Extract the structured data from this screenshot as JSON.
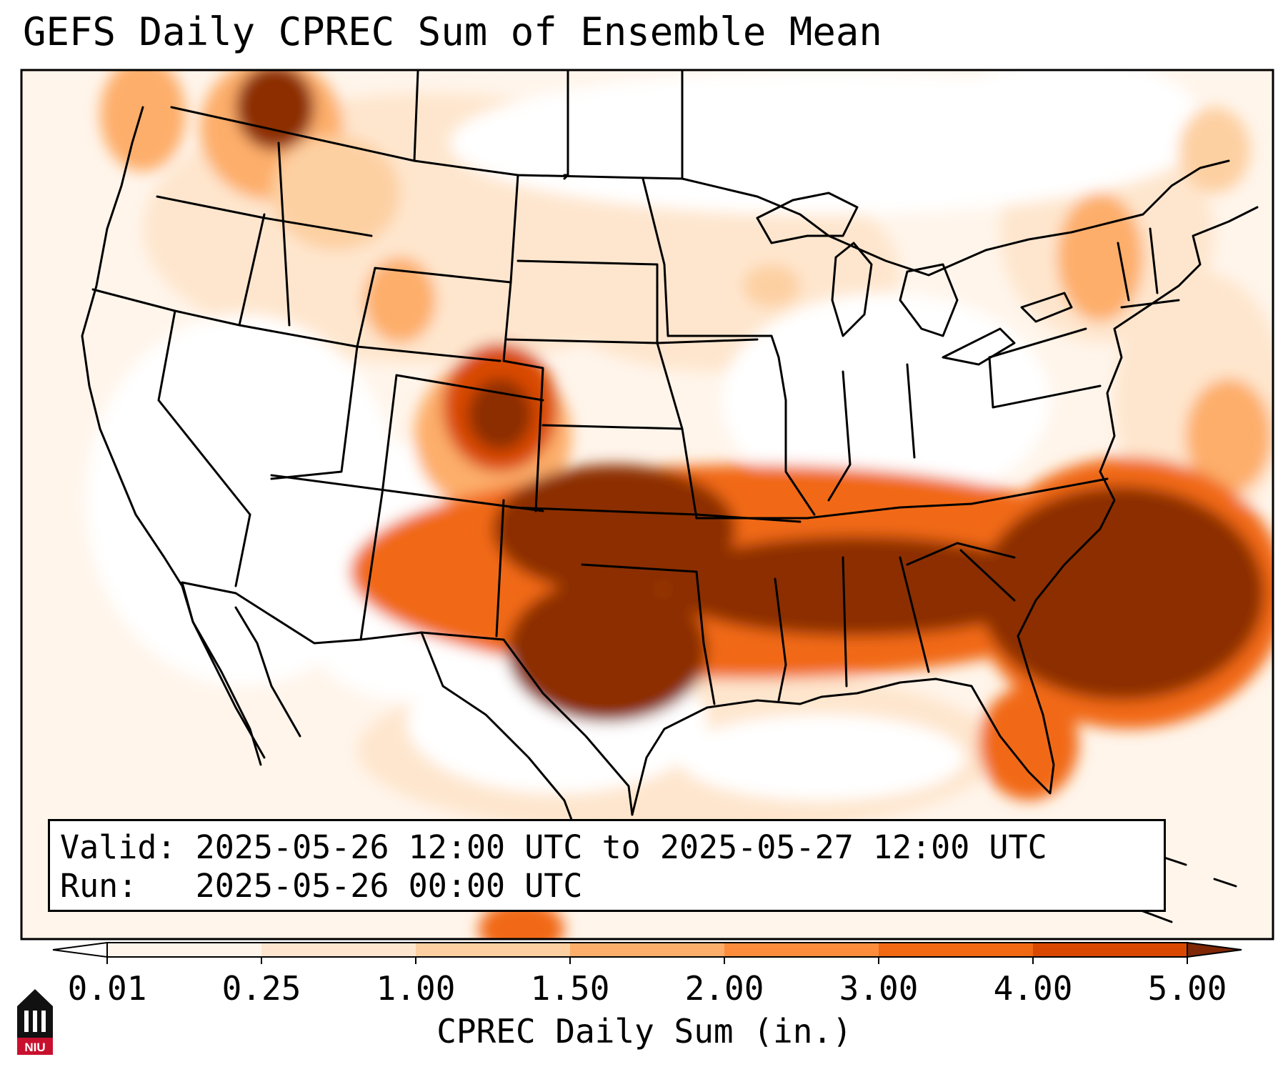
{
  "title": "GEFS Daily CPREC Sum of Ensemble Mean",
  "info": {
    "valid_line": "Valid: 2025-05-26 12:00 UTC to 2025-05-27 12:00 UTC",
    "run_line": "Run:   2025-05-26 00:00 UTC"
  },
  "colorbar": {
    "label": "CPREC Daily Sum (in.)",
    "ticks": [
      "0.01",
      "0.25",
      "1.00",
      "1.50",
      "2.00",
      "3.00",
      "4.00",
      "5.00"
    ],
    "colors": [
      "#fff5eb",
      "#fee6ce",
      "#fdd0a2",
      "#fdae6b",
      "#fd8d3c",
      "#f16913",
      "#d94801",
      "#8c2d04"
    ],
    "under_color": "#ffffff",
    "over_color": "#7f2704"
  },
  "logo": {
    "name": "niu-logo",
    "text": "NIU",
    "color": "#c8102e"
  }
}
